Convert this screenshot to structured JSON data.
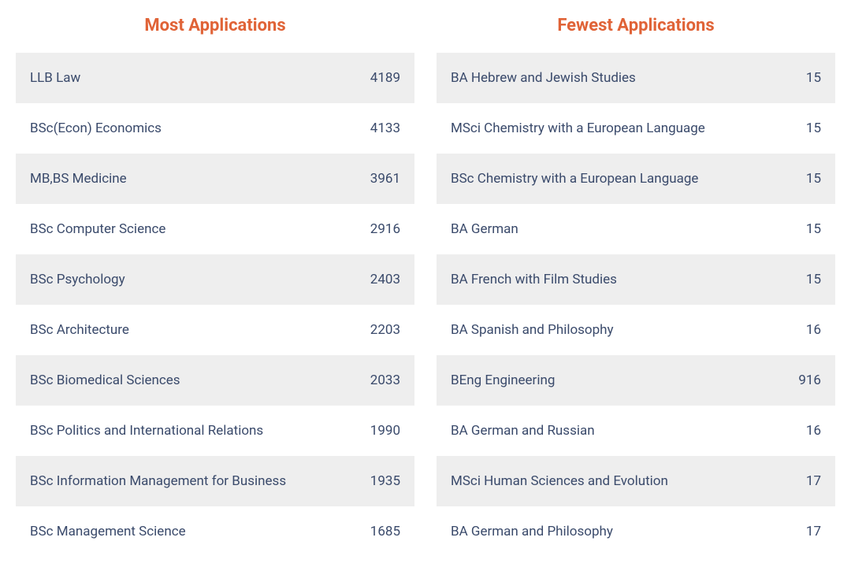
{
  "colors": {
    "title": "#e06337",
    "text": "#3a4a6b",
    "row_odd_bg": "#eeeeee",
    "row_even_bg": "#ffffff",
    "page_bg": "#ffffff"
  },
  "left": {
    "title": "Most Applications",
    "rows": [
      {
        "label": "LLB Law",
        "value": "4189"
      },
      {
        "label": "BSc(Econ) Economics",
        "value": "4133"
      },
      {
        "label": "MB,BS Medicine",
        "value": "3961"
      },
      {
        "label": "BSc Computer Science",
        "value": "2916"
      },
      {
        "label": "BSc Psychology",
        "value": "2403"
      },
      {
        "label": "BSc Architecture",
        "value": "2203"
      },
      {
        "label": "BSc Biomedical Sciences",
        "value": "2033"
      },
      {
        "label": "BSc Politics and International Relations",
        "value": "1990"
      },
      {
        "label": "BSc Information Management for Business",
        "value": "1935"
      },
      {
        "label": "BSc Management Science",
        "value": "1685"
      }
    ]
  },
  "right": {
    "title": "Fewest Applications",
    "rows": [
      {
        "label": "BA Hebrew and Jewish Studies",
        "value": "15"
      },
      {
        "label": "MSci Chemistry with a European Language",
        "value": "15"
      },
      {
        "label": "BSc Chemistry with a European Language",
        "value": "15"
      },
      {
        "label": "BA German",
        "value": "15"
      },
      {
        "label": "BA French with Film Studies",
        "value": "15"
      },
      {
        "label": "BA Spanish and Philosophy",
        "value": "16"
      },
      {
        "label": "BEng Engineering",
        "value": "916"
      },
      {
        "label": "BA German and Russian",
        "value": "16"
      },
      {
        "label": "MSci Human Sciences and Evolution",
        "value": "17"
      },
      {
        "label": "BA German and Philosophy",
        "value": "17"
      }
    ]
  }
}
